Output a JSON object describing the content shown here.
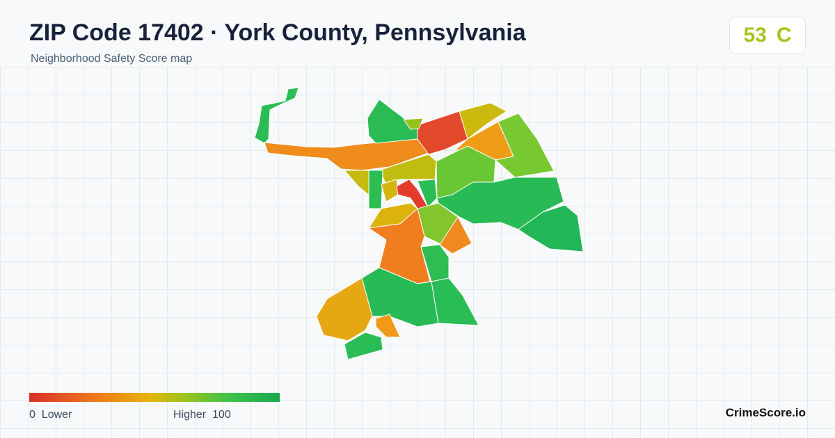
{
  "header": {
    "title": "ZIP Code 17402 · York County, Pennsylvania",
    "subtitle": "Neighborhood Safety Score map"
  },
  "score": {
    "value": 53,
    "grade": "C"
  },
  "legend": {
    "min": 0,
    "min_label": "Lower",
    "max_label": "Higher",
    "max": 100
  },
  "brand": "CrimeScore.io"
}
